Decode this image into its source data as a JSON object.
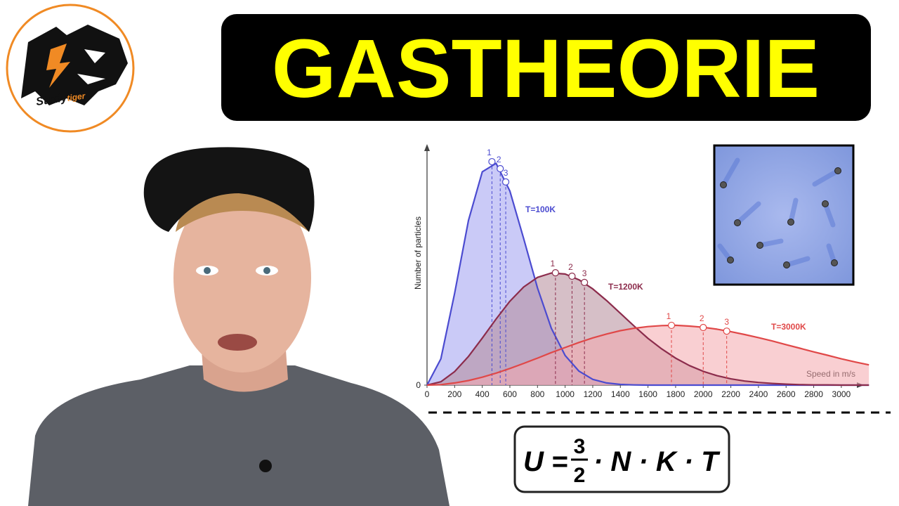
{
  "logo": {
    "text_1": "Study",
    "text_2": "tiger"
  },
  "header": {
    "title": "GASTHEORIE"
  },
  "formula": {
    "lhs": "U =",
    "numerator": "3",
    "denominator": "2",
    "rhs": "· N · K · T"
  },
  "chart_data": {
    "type": "line",
    "y_label": "Number of particles",
    "x_label": "Speed in m/s",
    "x": [
      0,
      100,
      200,
      300,
      400,
      500,
      600,
      700,
      800,
      900,
      1000,
      1100,
      1200,
      1300,
      1400,
      1500,
      1600,
      1700,
      1800,
      1900,
      2000,
      2100,
      2200,
      2300,
      2400,
      2500,
      2600,
      2700,
      2800,
      2900,
      3000,
      3100,
      3200
    ],
    "xlim": [
      0,
      3260
    ],
    "ylim": [
      0,
      100
    ],
    "xticks": [
      0,
      200,
      400,
      600,
      800,
      1000,
      1200,
      1400,
      1600,
      1800,
      2000,
      2200,
      2400,
      2600,
      2800,
      3000
    ],
    "yticks": [
      0
    ],
    "series": [
      {
        "name": "T=100K",
        "color": "#4b4bd0",
        "fill": "#9e9ef0",
        "values": [
          0,
          10.9,
          38.1,
          68.3,
          88.5,
          92.0,
          80.5,
          60.8,
          40.3,
          23.6,
          12.3,
          5.8,
          2.4,
          0.9,
          0.3,
          0.1,
          0,
          0,
          0,
          0,
          0,
          0,
          0,
          0,
          0,
          0,
          0,
          0,
          0,
          0,
          0,
          0,
          0
        ],
        "points": {
          "x": [
            470,
            530,
            570
          ],
          "values": [
            92.7,
            89.8,
            84.3
          ],
          "labels": [
            "1",
            "2",
            "3"
          ]
        }
      },
      {
        "name": "T=1200K",
        "color": "#8c2c4c",
        "fill": "#b58a99",
        "values": [
          0,
          1.4,
          5.6,
          11.9,
          19.5,
          27.4,
          34.8,
          40.7,
          44.7,
          46.5,
          46.1,
          43.7,
          39.9,
          35.1,
          29.8,
          24.5,
          19.4,
          15.0,
          11.2,
          8.1,
          5.7,
          3.9,
          2.6,
          1.7,
          1.1,
          0.7,
          0.4,
          0.2,
          0.1,
          0.1,
          0,
          0,
          0
        ],
        "points": {
          "x": [
            930,
            1050,
            1140
          ],
          "values": [
            46.6,
            45.2,
            42.6
          ],
          "labels": [
            "1",
            "2",
            "3"
          ]
        }
      },
      {
        "name": "T=3000K",
        "color": "#e04848",
        "fill": "#f4a7ad",
        "values": [
          0,
          0.2,
          0.9,
          1.9,
          3.3,
          5.0,
          6.9,
          9.0,
          11.2,
          13.5,
          15.6,
          17.7,
          19.6,
          21.2,
          22.6,
          23.6,
          24.3,
          24.7,
          24.8,
          24.5,
          24.0,
          23.2,
          22.2,
          21.0,
          19.7,
          18.3,
          16.8,
          15.3,
          13.8,
          12.4,
          10.9,
          9.6,
          8.4
        ],
        "points": {
          "x": [
            1770,
            2000,
            2170
          ],
          "values": [
            24.8,
            23.9,
            22.4
          ],
          "labels": [
            "1",
            "2",
            "3"
          ]
        }
      }
    ]
  }
}
